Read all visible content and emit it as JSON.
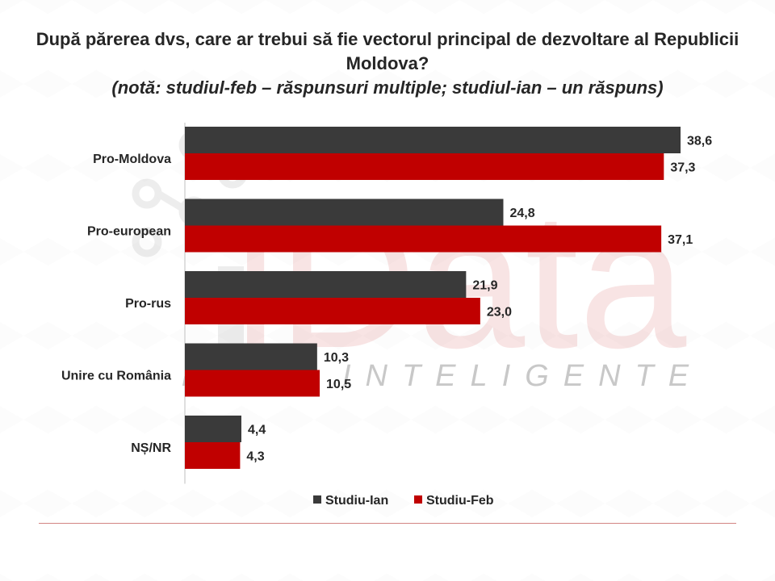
{
  "title": "După părerea dvs, care ar trebui să fie vectorul principal de dezvoltare al Republicii Moldova?",
  "subtitle": "(notă: studiul-feb – răspunsuri multiple; studiul-ian – un răspuns)",
  "watermark": {
    "brand": "iData",
    "tagline": "DATE INTELIGENTE"
  },
  "colors": {
    "series_ian": "#3a3a3a",
    "series_feb": "#c00000",
    "axis": "#bfbfbf",
    "text": "#262626"
  },
  "chart_data": {
    "type": "bar",
    "orientation": "horizontal",
    "categories": [
      "Pro-Moldova",
      "Pro-european",
      "Pro-rus",
      "Unire cu România",
      "NȘ/NR"
    ],
    "series": [
      {
        "name": "Studiu-Ian",
        "values": [
          38.6,
          24.8,
          21.9,
          10.3,
          4.4
        ],
        "labels": [
          "38,6",
          "24,8",
          "21,9",
          "10,3",
          "4,4"
        ]
      },
      {
        "name": "Studiu-Feb",
        "values": [
          37.3,
          37.1,
          23.0,
          10.5,
          4.3
        ],
        "labels": [
          "37,3",
          "37,1",
          "23,0",
          "10,5",
          "4,3"
        ]
      }
    ],
    "xlim": [
      0,
      40
    ],
    "grid": false,
    "legend_position": "bottom"
  }
}
